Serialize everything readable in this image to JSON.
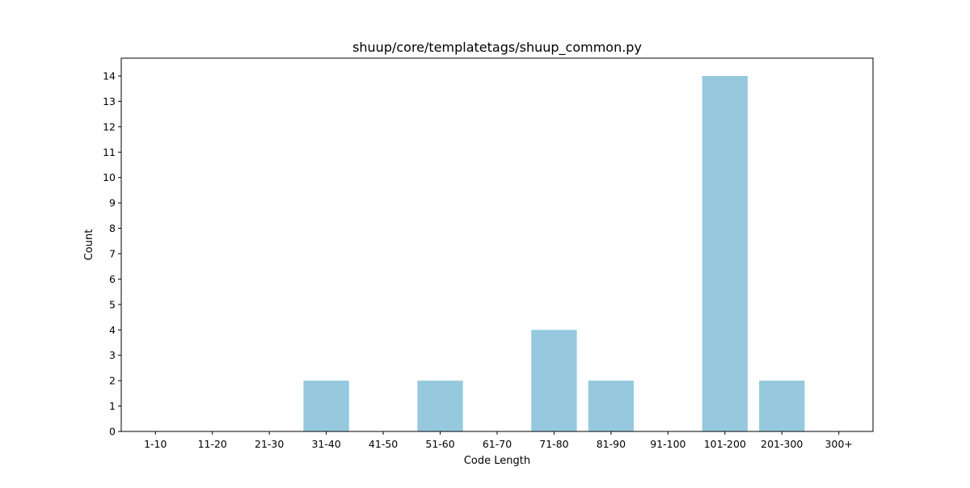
{
  "chart_data": {
    "type": "bar",
    "title": "shuup/core/templatetags/shuup_common.py",
    "xlabel": "Code Length",
    "ylabel": "Count",
    "categories": [
      "1-10",
      "11-20",
      "21-30",
      "31-40",
      "41-50",
      "51-60",
      "61-70",
      "71-80",
      "81-90",
      "91-100",
      "101-200",
      "201-300",
      "300+"
    ],
    "values": [
      0,
      0,
      0,
      2,
      0,
      2,
      0,
      4,
      2,
      0,
      14,
      2,
      0
    ],
    "ylim": [
      0,
      14.7
    ],
    "yticks": [
      0,
      1,
      2,
      3,
      4,
      5,
      6,
      7,
      8,
      9,
      10,
      11,
      12,
      13,
      14
    ],
    "bar_color": "#96c9de",
    "grid": false,
    "legend": "none"
  }
}
